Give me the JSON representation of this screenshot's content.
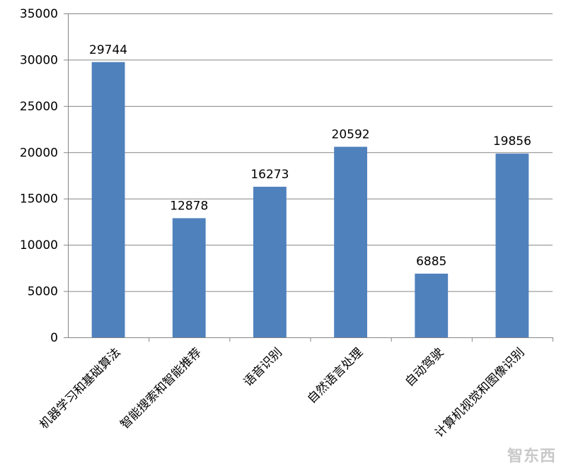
{
  "chart_data": {
    "type": "bar",
    "title": "",
    "xlabel": "",
    "ylabel": "",
    "ylim": [
      0,
      35000
    ],
    "yticks": [
      0,
      5000,
      10000,
      15000,
      20000,
      25000,
      30000,
      35000
    ],
    "grid": true,
    "legend": "none",
    "categories": [
      "机器学习和基础算法",
      "智能搜索和智能推荐",
      "语音识别",
      "自然语言处理",
      "自动驾驶",
      "计算机视觉和图像识别"
    ],
    "values": [
      29744,
      12878,
      16273,
      20592,
      6885,
      19856
    ],
    "bar_color": "#4f81bd"
  },
  "watermark": "智东西"
}
